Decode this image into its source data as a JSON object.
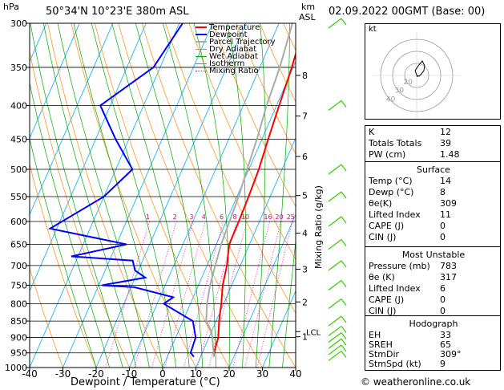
{
  "header": {
    "location": "50°34'N  10°23'E  380m  ASL",
    "datetime": "02.09.2022  00GMT  (Base: 00)",
    "pressure_unit": "hPa",
    "height_unit_top": "km",
    "height_unit_bottom": "ASL",
    "hodo_unit": "kt",
    "footer": "© weatheronline.co.uk"
  },
  "chart_data": {
    "type": "line",
    "title": "",
    "xlabel": "Dewpoint / Temperature (°C)",
    "ylabel": "hPa",
    "y_right_label": "Mixing Ratio (g/kg)",
    "xlim": [
      -40,
      40
    ],
    "ylim": [
      1000,
      300
    ],
    "y_scale": "log",
    "x_ticks": [
      -40,
      -30,
      -20,
      -10,
      0,
      10,
      20,
      30,
      40
    ],
    "pressure_ticks": [
      300,
      350,
      400,
      450,
      500,
      550,
      600,
      650,
      700,
      750,
      800,
      850,
      900,
      950,
      1000
    ],
    "height_ticks": [
      {
        "label": "8",
        "p": 360
      },
      {
        "label": "7",
        "p": 415
      },
      {
        "label": "6",
        "p": 478
      },
      {
        "label": "5",
        "p": 548
      },
      {
        "label": "4",
        "p": 625
      },
      {
        "label": "3",
        "p": 709
      },
      {
        "label": "2",
        "p": 795
      },
      {
        "label": "1",
        "p": 898
      }
    ],
    "lcl": {
      "label": "LCL",
      "p": 882
    },
    "mixing_ratio_labels": [
      "1",
      "2",
      "3",
      "4",
      "6",
      "8",
      "10",
      "16",
      "20",
      "25"
    ],
    "legend": [
      "Temperature",
      "Dewpoint",
      "Parcel Trajectory",
      "Dry Adiabat",
      "Wet Adiabat",
      "Isotherm",
      "Mixing Ratio"
    ],
    "legend_colors": [
      "#ff0000",
      "#0000ff",
      "#aaaaaa",
      "#ff8800",
      "#00aa00",
      "#00aaff",
      "#ff00aa"
    ],
    "series": [
      {
        "name": "Temperature",
        "color": "#ff0000",
        "points": [
          [
            -2.3,
            300
          ],
          [
            -0.4,
            350
          ],
          [
            0.8,
            400
          ],
          [
            1.9,
            450
          ],
          [
            3.0,
            500
          ],
          [
            3.5,
            550
          ],
          [
            3.8,
            600
          ],
          [
            3.9,
            650
          ],
          [
            6.0,
            700
          ],
          [
            7.3,
            750
          ],
          [
            9.3,
            800
          ],
          [
            10.9,
            850
          ],
          [
            12.8,
            900
          ],
          [
            13.5,
            950
          ],
          [
            14,
            963
          ]
        ]
      },
      {
        "name": "Dewpoint",
        "color": "#0000ff",
        "points": [
          [
            -39,
            300
          ],
          [
            -42,
            350
          ],
          [
            -53,
            400
          ],
          [
            -44,
            450
          ],
          [
            -35,
            500
          ],
          [
            -40,
            550
          ],
          [
            -52,
            615
          ],
          [
            -27,
            650
          ],
          [
            -42,
            678
          ],
          [
            -23,
            688
          ],
          [
            -21,
            712
          ],
          [
            -17,
            730
          ],
          [
            -29,
            750
          ],
          [
            -19,
            755
          ],
          [
            -6,
            782
          ],
          [
            -8,
            800
          ],
          [
            3,
            850
          ],
          [
            6,
            900
          ],
          [
            6.5,
            950
          ],
          [
            8,
            963
          ]
        ]
      },
      {
        "name": "Parcel Trajectory",
        "color": "#aaaaaa",
        "points": [
          [
            -6,
            300
          ],
          [
            -4,
            350
          ],
          [
            -3,
            400
          ],
          [
            -1.5,
            450
          ],
          [
            -0.5,
            500
          ],
          [
            0.5,
            550
          ],
          [
            1,
            600
          ],
          [
            1.5,
            650
          ],
          [
            2.5,
            700
          ],
          [
            3.5,
            750
          ],
          [
            5,
            800
          ],
          [
            7,
            850
          ],
          [
            10,
            882
          ],
          [
            12,
            920
          ],
          [
            14,
            963
          ]
        ]
      }
    ]
  },
  "hodograph": {
    "unit": "kt",
    "ring_labels": [
      "40",
      "30",
      "20"
    ],
    "trace": [
      [
        0,
        0
      ],
      [
        3,
        1
      ],
      [
        6,
        -2
      ],
      [
        9,
        -6
      ],
      [
        10,
        -12
      ],
      [
        7,
        -18
      ],
      [
        2,
        -12
      ],
      [
        -2,
        -6
      ],
      [
        1,
        2
      ]
    ]
  },
  "indices": {
    "rows": [
      {
        "label": "K",
        "value": "12"
      },
      {
        "label": "Totals Totals",
        "value": "39"
      },
      {
        "label": "PW (cm)",
        "value": "1.48"
      }
    ]
  },
  "surface": {
    "title": "Surface",
    "rows": [
      {
        "label": "Temp (°C)",
        "value": "14"
      },
      {
        "label": "Dewp (°C)",
        "value": "8"
      },
      {
        "label": "θe(K)",
        "value": "309"
      },
      {
        "label": "Lifted Index",
        "value": "11"
      },
      {
        "label": "CAPE (J)",
        "value": "0"
      },
      {
        "label": "CIN (J)",
        "value": "0"
      }
    ]
  },
  "most_unstable": {
    "title": "Most Unstable",
    "rows": [
      {
        "label": "Pressure (mb)",
        "value": "783"
      },
      {
        "label": "θe (K)",
        "value": "317"
      },
      {
        "label": "Lifted Index",
        "value": "6"
      },
      {
        "label": "CAPE (J)",
        "value": "0"
      },
      {
        "label": "CIN (J)",
        "value": "0"
      }
    ]
  },
  "hodograph_params": {
    "title": "Hodograph",
    "rows": [
      {
        "label": "EH",
        "value": "33"
      },
      {
        "label": "SREH",
        "value": "65"
      },
      {
        "label": "StmDir",
        "value": "309°"
      },
      {
        "label": "StmSpd (kt)",
        "value": "9"
      }
    ]
  }
}
